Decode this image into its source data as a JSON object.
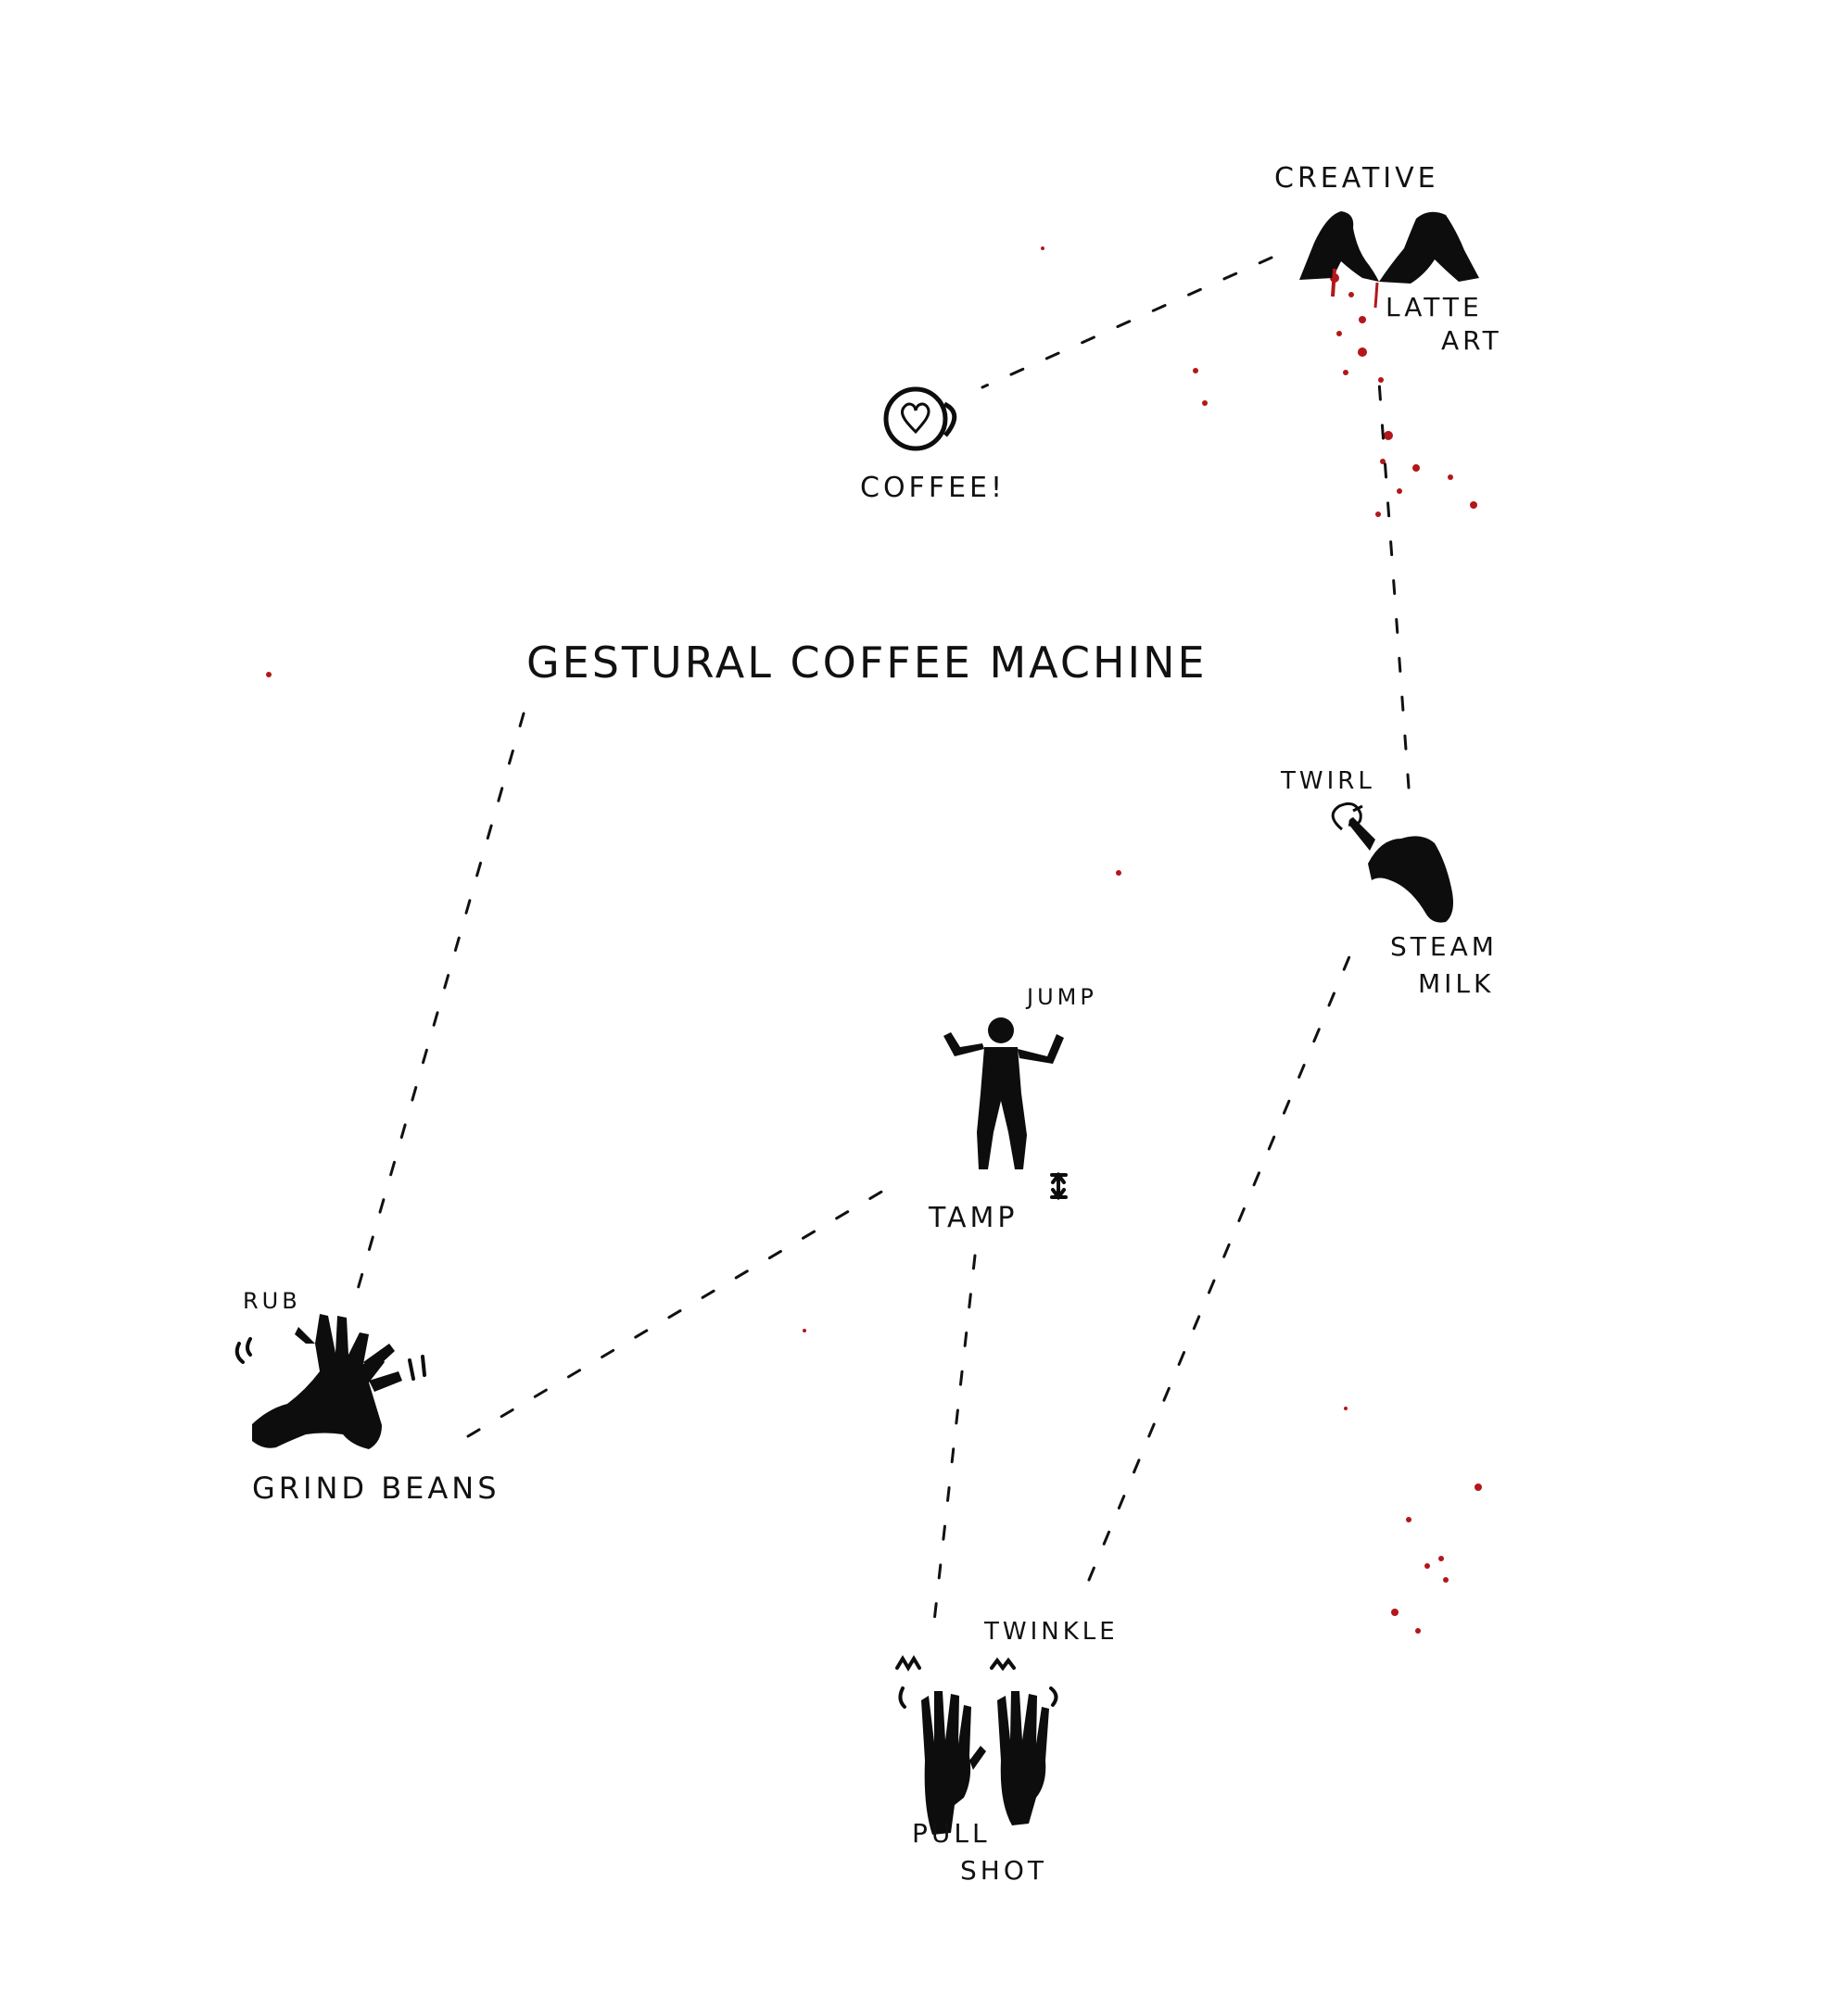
{
  "diagram": {
    "title": "GESTURAL COFFEE MACHINE",
    "ink_color": "#111111",
    "accent_color": "#b3171b",
    "nodes": [
      {
        "id": "grind",
        "step": "GRIND BEANS",
        "gesture": "RUB",
        "icon": "rubbing-hands-icon"
      },
      {
        "id": "tamp",
        "step": "TAMP",
        "gesture": "JUMP",
        "icon": "jumping-person-icon"
      },
      {
        "id": "pull",
        "step": "PULL SHOT",
        "step_lines": [
          "PULL",
          "SHOT"
        ],
        "gesture": "TWINKLE",
        "icon": "twinkling-fingers-icon"
      },
      {
        "id": "steam",
        "step": "STEAM MILK",
        "step_lines": [
          "STEAM",
          "MILK"
        ],
        "gesture": "TWIRL",
        "icon": "twirling-finger-icon"
      },
      {
        "id": "latte",
        "step": "LATTE ART",
        "step_lines": [
          "LATTE",
          "ART"
        ],
        "gesture": "CREATIVE",
        "icon": "heart-hands-icon"
      },
      {
        "id": "coffee",
        "step": "COFFEE!",
        "icon": "coffee-cup-heart-icon"
      }
    ],
    "edges": [
      {
        "from": "title",
        "to": "grind"
      },
      {
        "from": "grind",
        "to": "tamp"
      },
      {
        "from": "tamp",
        "to": "pull"
      },
      {
        "from": "pull",
        "to": "steam"
      },
      {
        "from": "steam",
        "to": "latte"
      },
      {
        "from": "latte",
        "to": "coffee"
      }
    ]
  }
}
